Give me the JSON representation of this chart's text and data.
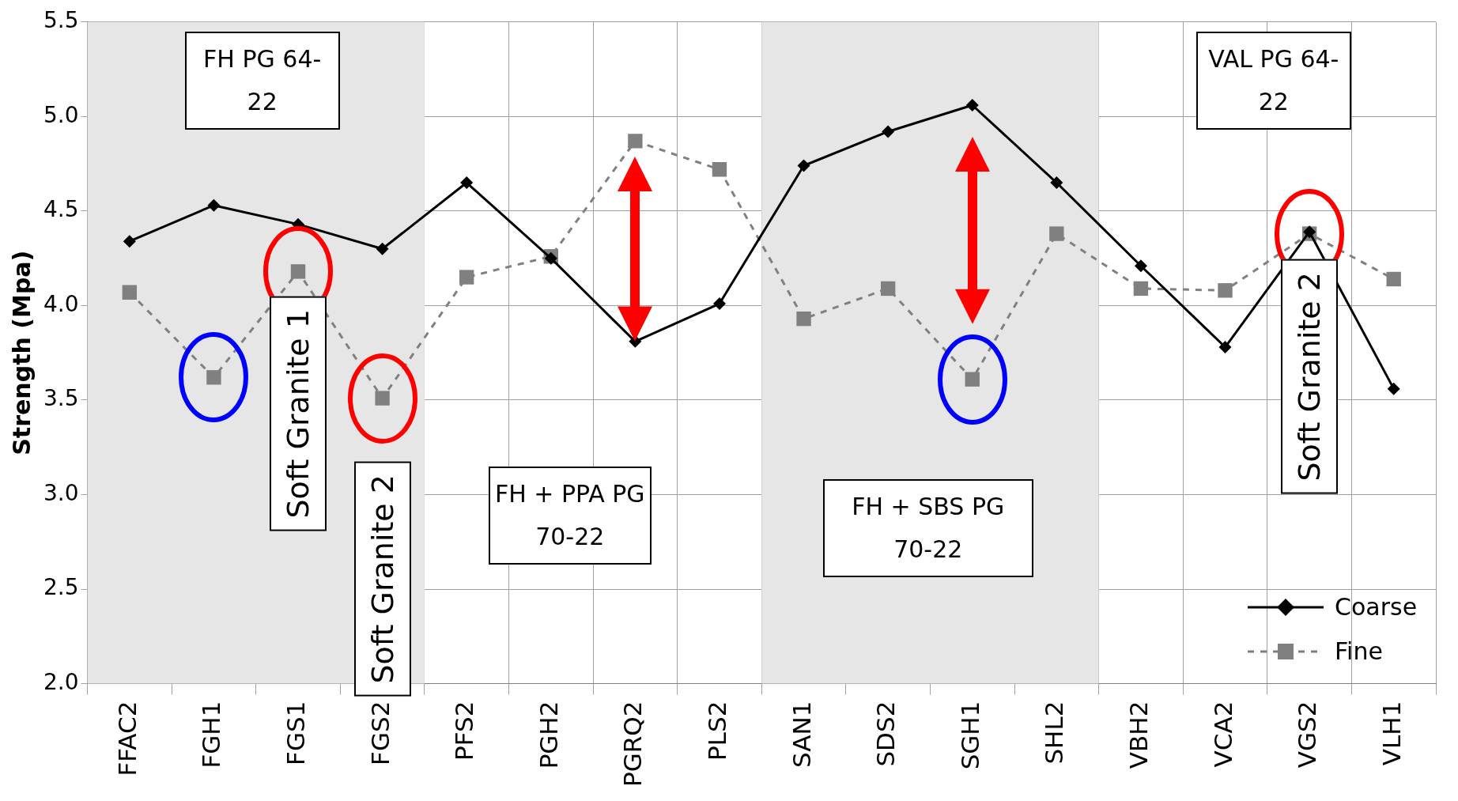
{
  "chart_data": {
    "type": "line",
    "ylabel": "Strength (Mpa)",
    "categories": [
      "FFAC2",
      "FGH1",
      "FGS1",
      "FGS2",
      "PFS2",
      "PGH2",
      "PGRQ2",
      "PLS2",
      "SAN1",
      "SDS2",
      "SGH1",
      "SHL2",
      "VBH2",
      "VCA2",
      "VGS2",
      "VLH1"
    ],
    "ylim": [
      2,
      5.5
    ],
    "yticks": [
      {
        "value": 2,
        "label": "2.0"
      },
      {
        "value": 2.5,
        "label": "2.5"
      },
      {
        "value": 3,
        "label": "3.0"
      },
      {
        "value": 3.5,
        "label": "3.5"
      },
      {
        "value": 4,
        "label": "4.0"
      },
      {
        "value": 4.5,
        "label": "4.5"
      },
      {
        "value": 5,
        "label": "5.0"
      },
      {
        "value": 5.5,
        "label": "5.5"
      }
    ],
    "grid": true,
    "legend": "bottom right",
    "series": [
      {
        "name": "Coarse",
        "color": "#000000",
        "marker": "diamond",
        "line_style": "solid",
        "values": [
          4.34,
          4.53,
          4.43,
          4.3,
          4.65,
          4.25,
          3.81,
          4.01,
          4.74,
          4.92,
          5.06,
          4.65,
          4.21,
          3.78,
          4.39,
          3.56
        ]
      },
      {
        "name": "Fine",
        "color": "#808080",
        "marker": "square",
        "line_style": "dashed",
        "values": [
          4.07,
          3.62,
          4.18,
          3.51,
          4.15,
          4.26,
          4.87,
          4.72,
          3.93,
          4.09,
          3.61,
          4.38,
          4.09,
          4.08,
          4.38,
          4.14
        ]
      }
    ],
    "bands": [
      {
        "axis": "x",
        "from": "FFAC2",
        "to": "FGS2",
        "color": "#e6e6e6"
      },
      {
        "axis": "x",
        "from": "SAN1",
        "to": "SHL2",
        "color": "#e6e6e6"
      }
    ],
    "annotations": [
      "FH PG 64-22",
      "FH + PPA PG 70-22",
      "FH + SBS PG 70-22",
      "VAL PG 64-22",
      {
        "text": "Soft Granite 1",
        "x": "FGS1",
        "y": 4.18
      },
      {
        "text": "Soft Granite 2",
        "x": "FGS2",
        "y": 3.51
      },
      {
        "text": "Soft Granite 2",
        "x": "VGS2",
        "y": 4.38
      }
    ]
  }
}
